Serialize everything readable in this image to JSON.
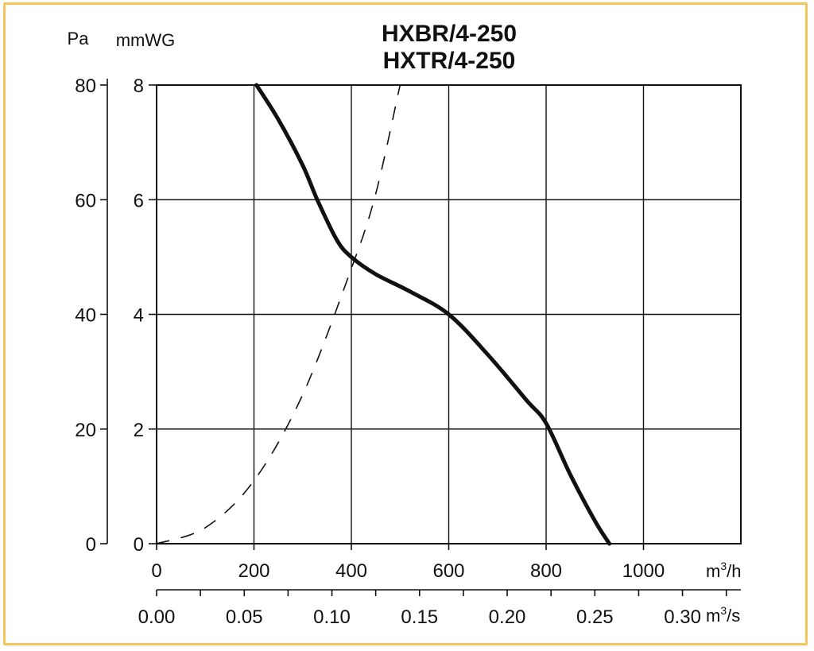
{
  "chart_data": {
    "type": "line",
    "title_lines": [
      "HXBR/4-250",
      "HXTR/4-250"
    ],
    "y_axis_pa": {
      "label": "Pa",
      "ticks": [
        0,
        20,
        40,
        60,
        80
      ],
      "range": [
        0,
        80
      ]
    },
    "y_axis_mmwg": {
      "label": "mmWG",
      "ticks": [
        0,
        2,
        4,
        6,
        8
      ],
      "range": [
        0,
        8
      ]
    },
    "x_axis_m3h": {
      "label": "m³/h",
      "label_base": "m",
      "label_sup": "3",
      "label_rest": "/h",
      "ticks": [
        0,
        200,
        400,
        600,
        800,
        1000
      ],
      "range": [
        0,
        1200
      ]
    },
    "x_axis_m3s": {
      "label": "m³/s",
      "label_base": "m",
      "label_sup": "3",
      "label_rest": "/s",
      "ticks": [
        "0.00",
        "0.05",
        "0.10",
        "0.15",
        "0.20",
        "0.25",
        "0.30"
      ],
      "range": [
        0,
        0.3333
      ]
    },
    "grid": true,
    "series": [
      {
        "style": "solid",
        "color": "#111111",
        "points": [
          [
            205,
            80
          ],
          [
            250,
            74
          ],
          [
            300,
            66
          ],
          [
            330,
            60
          ],
          [
            370,
            53
          ],
          [
            400,
            50
          ],
          [
            450,
            47
          ],
          [
            520,
            44
          ],
          [
            600,
            40
          ],
          [
            680,
            33
          ],
          [
            760,
            25
          ],
          [
            800,
            21
          ],
          [
            850,
            12
          ],
          [
            900,
            4
          ],
          [
            930,
            0
          ]
        ]
      },
      {
        "style": "dashed",
        "color": "#111111",
        "points": [
          [
            0,
            0
          ],
          [
            100,
            2.8
          ],
          [
            200,
            11
          ],
          [
            300,
            26
          ],
          [
            400,
            48
          ],
          [
            450,
            61
          ],
          [
            500,
            80
          ]
        ]
      }
    ]
  }
}
